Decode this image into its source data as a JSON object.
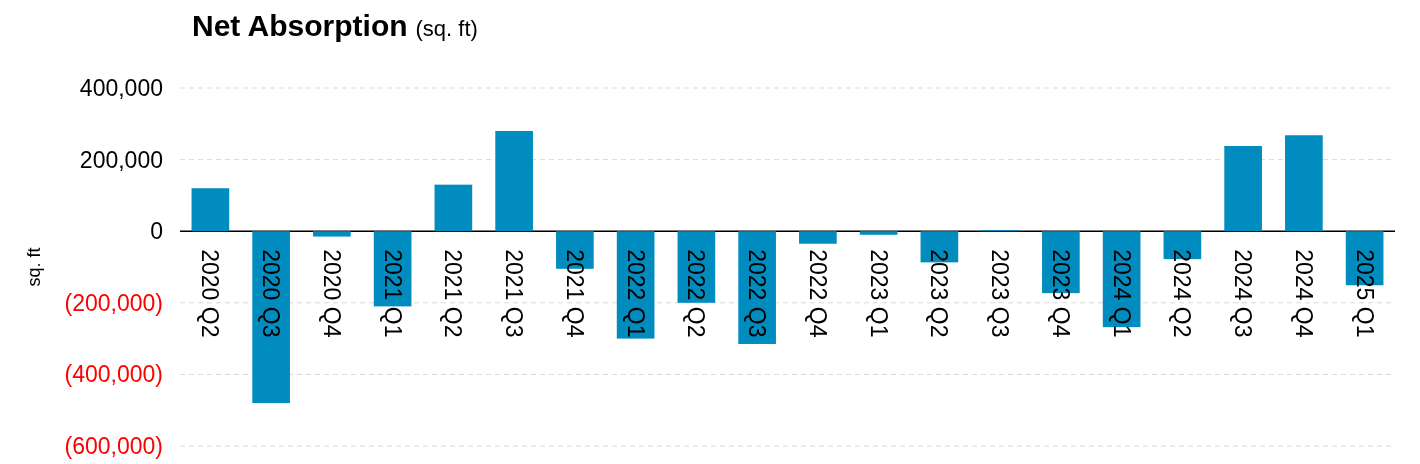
{
  "chart_data": {
    "type": "bar",
    "title": "Net Absorption",
    "subtitle": "(sq. ft)",
    "ylabel": "sq. ft",
    "categories": [
      "2020 Q2",
      "2020 Q3",
      "2020 Q4",
      "2021 Q1",
      "2021 Q2",
      "2021 Q3",
      "2021 Q4",
      "2022 Q1",
      "2022 Q2",
      "2022 Q3",
      "2022 Q4",
      "2023 Q1",
      "2023 Q2",
      "2023 Q3",
      "2023 Q4",
      "2024 Q1",
      "2024 Q2",
      "2024 Q3",
      "2024 Q4",
      "2025 Q1"
    ],
    "values": [
      120000,
      -480000,
      -15000,
      -210000,
      130000,
      280000,
      -105000,
      -300000,
      -200000,
      -315000,
      -35000,
      -10000,
      -87000,
      3000,
      -173000,
      -268000,
      -78000,
      238000,
      268000,
      -151000
    ],
    "color": "#008cbf",
    "ylim": [
      -600000,
      400000
    ],
    "yticks": [
      {
        "value": -600000,
        "label": "(600,000)"
      },
      {
        "value": -400000,
        "label": "(400,000)"
      },
      {
        "value": -200000,
        "label": "(200,000)"
      },
      0,
      {
        "value": 200000,
        "label": "200,000"
      },
      {
        "value": 400000,
        "label": "400,000"
      }
    ],
    "grid": "y"
  }
}
